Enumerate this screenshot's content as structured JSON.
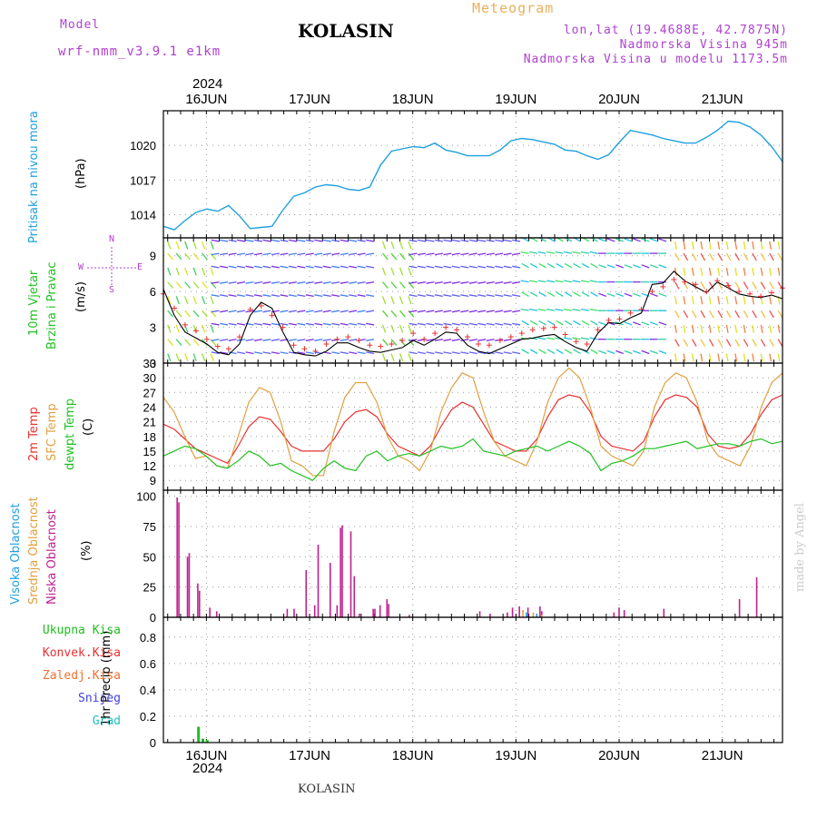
{
  "header": {
    "model_label": "Model",
    "model_name": "wrf-nmm_v3.9.1  e1km",
    "station": "KOLASIN",
    "product": "Meteogram",
    "coords": "lon,lat (19.4688E, 42.7875N)",
    "elevation": "Nadmorska Visina 945m",
    "model_elevation": "Nadmorska Visina u modelu 1173.5m",
    "footer_station": "KOLASIN",
    "watermark": "made by Angel"
  },
  "colors": {
    "pressure": "#1ea0e0",
    "temp2m": "#e83030",
    "sfc": "#e0a040",
    "dewpt": "#20c020",
    "high_cloud": "#1ea0e0",
    "mid_cloud": "#e0a040",
    "low_cloud": "#c0208f",
    "total_precip": "#20c020",
    "conv_precip": "#e83030",
    "freezing": "#f07030",
    "snow": "#4040e0",
    "hail": "#20c0c0",
    "wind_speed": "#000000",
    "wind_gust": "#e83030",
    "label_violet": "#b040d0"
  },
  "chart_data": [
    {
      "type": "line",
      "panel": "pressure",
      "ylabel_top": "Pritisak na nivou mora",
      "ylabel_unit": "(hPa)",
      "yticks": [
        1014,
        1017,
        1020
      ],
      "ylim": [
        1012,
        1023
      ],
      "x_start": "2024-06-15 14:00",
      "x_end": "2024-06-21 14:00",
      "x_step_hours": 3,
      "series": [
        {
          "values": [
            1013.0,
            1012.7,
            1013.5,
            1014.2,
            1014.5,
            1014.3,
            1014.8,
            1013.9,
            1012.8,
            1012.9,
            1013.0,
            1014.4,
            1015.6,
            1015.9,
            1016.4,
            1016.6,
            1016.5,
            1016.2,
            1016.1,
            1016.4,
            1018.3,
            1019.5,
            1019.7,
            1019.9,
            1019.8,
            1020.2,
            1019.6,
            1019.4,
            1019.1,
            1019.1,
            1019.1,
            1019.6,
            1020.4,
            1020.6,
            1020.5,
            1020.3,
            1020.1,
            1019.6,
            1019.5,
            1019.1,
            1018.8,
            1019.2,
            1020.3,
            1021.3,
            1021.1,
            1020.9,
            1020.6,
            1020.4,
            1020.2,
            1020.2,
            1020.7,
            1021.3,
            1022.1,
            1022.0,
            1021.6,
            1020.9,
            1019.9,
            1018.6
          ]
        }
      ]
    },
    {
      "type": "line",
      "panel": "wind",
      "ylabel_top": "10m Vjetar",
      "ylabel_bottom": "Brzina i Pravac",
      "ylabel_unit": "(m/s)",
      "compass": [
        "N",
        "W",
        "E",
        "S"
      ],
      "yticks": [
        0,
        3,
        6,
        9
      ],
      "ylim": [
        0,
        10.5
      ],
      "x_start": "2024-06-15 14:00",
      "x_step_hours": 3,
      "series": [
        {
          "name": "speed",
          "values": [
            6.2,
            4.0,
            2.6,
            2.1,
            1.6,
            0.9,
            0.7,
            1.6,
            4.0,
            5.1,
            4.6,
            2.6,
            0.9,
            0.7,
            0.6,
            1.0,
            1.7,
            1.7,
            1.3,
            1.0,
            0.9,
            1.1,
            1.3,
            1.9,
            1.5,
            2.0,
            2.6,
            2.5,
            1.5,
            1.0,
            0.8,
            1.2,
            1.6,
            2.0,
            2.1,
            2.3,
            2.4,
            1.8,
            1.3,
            1.0,
            2.5,
            3.4,
            3.3,
            3.8,
            4.2,
            6.6,
            6.7,
            7.7,
            6.9,
            6.4,
            5.9,
            6.8,
            6.3,
            5.8,
            5.6,
            5.5,
            5.7,
            5.4
          ]
        },
        {
          "name": "gust",
          "values": [
            5.8,
            4.6,
            3.2,
            2.7,
            2.0,
            1.4,
            1.2,
            2.2,
            4.5,
            4.8,
            4.0,
            3.0,
            1.5,
            1.2,
            1.0,
            1.6,
            2.0,
            2.2,
            1.9,
            1.5,
            1.4,
            1.6,
            1.9,
            2.5,
            2.0,
            2.5,
            3.0,
            2.8,
            2.2,
            1.6,
            1.5,
            1.9,
            2.2,
            2.5,
            2.8,
            2.9,
            3.0,
            2.4,
            1.8,
            1.6,
            2.8,
            3.6,
            3.7,
            4.2,
            4.5,
            6.0,
            6.4,
            7.0,
            6.8,
            6.6,
            6.0,
            6.9,
            6.5,
            6.0,
            5.8,
            5.6,
            5.9,
            6.3
          ]
        }
      ]
    },
    {
      "type": "line",
      "panel": "temperature",
      "ylabel_lines": [
        "2m Temp",
        "SFC Temp",
        "dewpt Temp"
      ],
      "ylabel_unit": "(C)",
      "yticks": [
        9,
        12,
        15,
        18,
        21,
        24,
        27,
        30,
        33
      ],
      "ylim": [
        7,
        33
      ],
      "x_start": "2024-06-15 14:00",
      "x_step_hours": 3,
      "series": [
        {
          "name": "2m Temp",
          "values": [
            20.5,
            19.5,
            17.5,
            15.5,
            14.5,
            13.5,
            12.5,
            16,
            20,
            22,
            21.5,
            19,
            16,
            15,
            15,
            15,
            17.5,
            21,
            23,
            23.5,
            22,
            18.5,
            16,
            15,
            14,
            16,
            20,
            23.5,
            25,
            24,
            20.5,
            17,
            16,
            15,
            15,
            17.5,
            22,
            25.5,
            26.5,
            26,
            23,
            18,
            16,
            15.5,
            15,
            17,
            22,
            25.5,
            26.5,
            26,
            24,
            18.5,
            16,
            15.5,
            16,
            18.5,
            22.5,
            25.5,
            26.5
          ]
        },
        {
          "name": "SFC Temp",
          "values": [
            26,
            23,
            18,
            13.5,
            14,
            12,
            11.5,
            18,
            25,
            28,
            27,
            21,
            13,
            12,
            10,
            10,
            19,
            26,
            29,
            29,
            25,
            18,
            14,
            13,
            11,
            15,
            23,
            28,
            31,
            30,
            23,
            17,
            14,
            13,
            12,
            17,
            25,
            30,
            32,
            30,
            24,
            16,
            14,
            13,
            12,
            15,
            24,
            29,
            31,
            30,
            25,
            17,
            14,
            13,
            12,
            16,
            24,
            29,
            31
          ]
        },
        {
          "name": "dewpt Temp",
          "values": [
            14,
            15,
            16,
            15.5,
            14,
            12,
            11.5,
            13,
            15,
            14,
            12,
            12.5,
            11,
            10,
            9,
            11.5,
            13,
            11.5,
            11,
            14,
            15,
            13,
            14,
            14.5,
            14,
            15,
            16,
            15.5,
            16,
            17.5,
            15,
            14.5,
            14,
            15,
            15.5,
            16,
            15,
            16,
            17,
            16,
            14.5,
            11,
            12.5,
            13,
            14,
            15.5,
            15.5,
            16,
            16.5,
            17,
            15.5,
            16,
            16.5,
            16.5,
            16,
            17,
            17.5,
            16.5,
            17
          ]
        }
      ]
    },
    {
      "type": "bar",
      "panel": "cloud",
      "ylabel_lines": [
        "Visoka Oblacnost",
        "Srednja Oblacnost",
        "Niska Oblacnost"
      ],
      "ylabel_unit": "(%)",
      "yticks": [
        0,
        25,
        50,
        75,
        100
      ],
      "ylim": [
        0,
        105
      ],
      "x_start": "2024-06-15 14:00",
      "series": [
        {
          "name": "Niska Oblacnost",
          "bars": [
            [
              8,
              99
            ],
            [
              9,
              95
            ],
            [
              14,
              50
            ],
            [
              15,
              53
            ],
            [
              20,
              28
            ],
            [
              21,
              22
            ],
            [
              27,
              8
            ],
            [
              31,
              5
            ],
            [
              72,
              7
            ],
            [
              76,
              7
            ],
            [
              83,
              39
            ],
            [
              88,
              10
            ],
            [
              90,
              60
            ],
            [
              97,
              45
            ],
            [
              101,
              10
            ],
            [
              103,
              74
            ],
            [
              104,
              76
            ],
            [
              109,
              71
            ],
            [
              111,
              34
            ],
            [
              114,
              3
            ],
            [
              122,
              7
            ],
            [
              123,
              7
            ],
            [
              126,
              10
            ],
            [
              130,
              15
            ],
            [
              131,
              11
            ],
            [
              143,
              2
            ],
            [
              184,
              5
            ],
            [
              190,
              3
            ],
            [
              200,
              4
            ],
            [
              203,
              8
            ],
            [
              207,
              9
            ],
            [
              212,
              8
            ],
            [
              219,
              9
            ],
            [
              220,
              5
            ],
            [
              262,
              4
            ],
            [
              265,
              8
            ],
            [
              268,
              6
            ],
            [
              291,
              7
            ],
            [
              335,
              15
            ],
            [
              345,
              33
            ]
          ]
        },
        {
          "name": "Srednja Oblacnost",
          "bars": [
            [
              208,
              6
            ],
            [
              214,
              4
            ],
            [
              219,
              2
            ]
          ]
        },
        {
          "name": "Visoka Oblacnost",
          "bars": [
            [
              209,
              4
            ],
            [
              215,
              3
            ]
          ]
        }
      ]
    },
    {
      "type": "bar",
      "panel": "precipitation",
      "legend": [
        "Ukupna Kisa",
        "Konvek.Kisa",
        "Zaledj.Kisa",
        "Snijeg",
        "Grad"
      ],
      "ylabel": "1hr Precip (mm)",
      "yticks": [
        0,
        0.2,
        0.4,
        0.6,
        0.8
      ],
      "ylim": [
        0,
        0.95
      ],
      "x_start": "2024-06-15 14:00",
      "series": [
        {
          "name": "Ukupna Kisa",
          "bars": [
            [
              8,
              0.12
            ],
            [
              9,
              0.03
            ],
            [
              10,
              0.02
            ]
          ]
        }
      ]
    }
  ],
  "axis": {
    "year": "2024",
    "dates": [
      "16JUN",
      "17JUN",
      "18JUN",
      "19JUN",
      "20JUN",
      "21JUN"
    ]
  }
}
